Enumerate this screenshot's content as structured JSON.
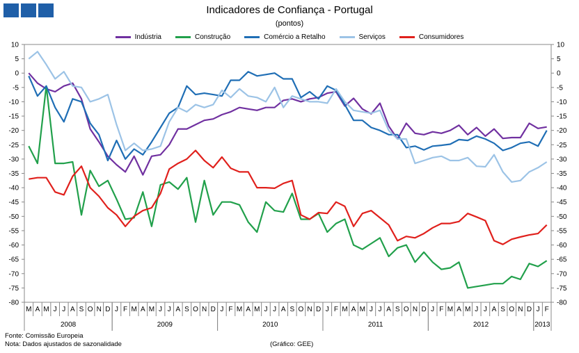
{
  "chart_data": {
    "type": "line",
    "title": "Indicadores de Confiança - Portugal",
    "subtitle": "(pontos)",
    "ylim": [
      -80,
      10
    ],
    "yticks": [
      10,
      5,
      0,
      -5,
      -10,
      -15,
      -20,
      -25,
      -30,
      -35,
      -40,
      -45,
      -50,
      -55,
      -60,
      -65,
      -70,
      -75,
      -80
    ],
    "month_labels": [
      "M",
      "A",
      "M",
      "J",
      "J",
      "A",
      "S",
      "O",
      "N",
      "D",
      "J",
      "F",
      "M",
      "A",
      "M",
      "J",
      "J",
      "A",
      "S",
      "O",
      "N",
      "D",
      "J",
      "F",
      "M",
      "A",
      "M",
      "J",
      "J",
      "A",
      "S",
      "O",
      "N",
      "D",
      "J",
      "F",
      "M",
      "A",
      "M",
      "J",
      "J",
      "A",
      "S",
      "O",
      "N",
      "D",
      "J",
      "F",
      "M",
      "A",
      "M",
      "J",
      "J",
      "A",
      "S",
      "O",
      "N",
      "D",
      "J",
      "F"
    ],
    "year_labels": [
      {
        "label": "2008",
        "start": 0,
        "end": 10
      },
      {
        "label": "2009",
        "start": 10,
        "end": 22
      },
      {
        "label": "2010",
        "start": 22,
        "end": 34
      },
      {
        "label": "2011",
        "start": 34,
        "end": 46
      },
      {
        "label": "2012",
        "start": 46,
        "end": 58
      },
      {
        "label": "2013",
        "start": 58,
        "end": 60
      }
    ],
    "legend_position": "top",
    "grid": false,
    "series": [
      {
        "name": "Indústria",
        "color": "#7030a0",
        "values": [
          0,
          -3.5,
          -5.5,
          -6.5,
          -4.5,
          -3.5,
          -9,
          -19.5,
          -24,
          -29,
          -32,
          -34.5,
          -29,
          -35.5,
          -29,
          -28.5,
          -25,
          -19.5,
          -19.5,
          -18,
          -16.5,
          -16,
          -14.5,
          -13.5,
          -12,
          -12.5,
          -13,
          -12,
          -12,
          -9.5,
          -9,
          -10,
          -9,
          -8.5,
          -7,
          -6.5,
          -11.5,
          -8.8,
          -12.5,
          -14.2,
          -10.5,
          -18.5,
          -23,
          -17.5,
          -21,
          -21.5,
          -20.5,
          -21,
          -20,
          -18.2,
          -21.5,
          -19,
          -22,
          -19.5,
          -22.8,
          -22.5,
          -22.5,
          -17.5,
          -19.3,
          -18.8
        ]
      },
      {
        "name": "Construção",
        "color": "#21a04b",
        "values": [
          -25.5,
          -31.5,
          -4.5,
          -31.5,
          -31.5,
          -31,
          -49.5,
          -34,
          -39.5,
          -37.5,
          -44,
          -51,
          -50.5,
          -41.5,
          -53.5,
          -39,
          -38,
          -40.5,
          -36.5,
          -52,
          -37.5,
          -49.5,
          -45,
          -45,
          -46,
          -52,
          -55.5,
          -45,
          -48,
          -48.5,
          -42,
          -51,
          -51,
          -49,
          -55.5,
          -52.5,
          -51,
          -60,
          -61.5,
          -59.5,
          -57.5,
          -64,
          -61,
          -60,
          -66,
          -62.5,
          -66,
          -68.5,
          -68,
          -66,
          -75,
          -74.5,
          -74,
          -73.5,
          -73.5,
          -71,
          -72,
          -66.5,
          -67.5,
          -65.5
        ]
      },
      {
        "name": "Comércio a Retalho",
        "color": "#1f6eb5",
        "values": [
          -1,
          -8,
          -4.5,
          -12,
          -17,
          -9,
          -10,
          -17.5,
          -21.5,
          -30.5,
          -23.5,
          -30,
          -26.5,
          -28.5,
          -24,
          -19,
          -14,
          -12,
          -4.5,
          -7.5,
          -7,
          -7.5,
          -8,
          -2.5,
          -2.5,
          0.5,
          -1,
          -0.5,
          0,
          -2,
          -2,
          -8.5,
          -6.5,
          -9,
          -4.5,
          -6,
          -11,
          -16.5,
          -16.5,
          -19,
          -20,
          -21.5,
          -21.5,
          -26,
          -25.5,
          -26.8,
          -25.5,
          -25.2,
          -24.8,
          -23.2,
          -23.5,
          -22,
          -23,
          -24.5,
          -27,
          -26,
          -24.5,
          -24,
          -25.5,
          -20
        ]
      },
      {
        "name": "Serviços",
        "color": "#9cc3e6",
        "values": [
          5,
          7.5,
          3,
          -2,
          0.5,
          -4.5,
          -5,
          -10,
          -9,
          -7.5,
          -18,
          -27,
          -24.5,
          -27,
          -26.5,
          -25.5,
          -17,
          -12,
          -13.5,
          -11,
          -12,
          -11,
          -6,
          -8.5,
          -5.5,
          -8,
          -8.5,
          -10,
          -5,
          -12,
          -8,
          -9,
          -10,
          -10,
          -10.5,
          -5.5,
          -10,
          -13,
          -13.5,
          -14,
          -13,
          -20,
          -23,
          -23,
          -31.5,
          -30.5,
          -29.5,
          -29,
          -30.5,
          -30.5,
          -29.5,
          -32.5,
          -32.7,
          -28.5,
          -34.5,
          -38,
          -37.5,
          -34.5,
          -33,
          -31
        ]
      },
      {
        "name": "Consumidores",
        "color": "#e0201c",
        "values": [
          -37,
          -36.5,
          -36.5,
          -41.5,
          -42.5,
          -36,
          -32.5,
          -40,
          -43,
          -47,
          -49.5,
          -53.5,
          -50,
          -48,
          -47,
          -42,
          -33.5,
          -31.5,
          -30,
          -27,
          -30.5,
          -33,
          -29.3,
          -33.2,
          -34.5,
          -34.5,
          -40,
          -40,
          -40.2,
          -38.5,
          -37.5,
          -49.5,
          -51,
          -48.7,
          -49,
          -45,
          -46.5,
          -53.5,
          -49,
          -48,
          -50.5,
          -53,
          -58.5,
          -57,
          -57.5,
          -56,
          -54,
          -52.5,
          -52.5,
          -51.8,
          -49,
          -50.2,
          -51.5,
          -58.5,
          -59.8,
          -58,
          -57.2,
          -56.5,
          -56,
          -53
        ]
      }
    ]
  },
  "footnotes": {
    "source": "Fonte: Comissão Europeia",
    "note": "Nota: Dados ajustados de sazonalidade",
    "credit": "(Gráfico: GEE)"
  }
}
